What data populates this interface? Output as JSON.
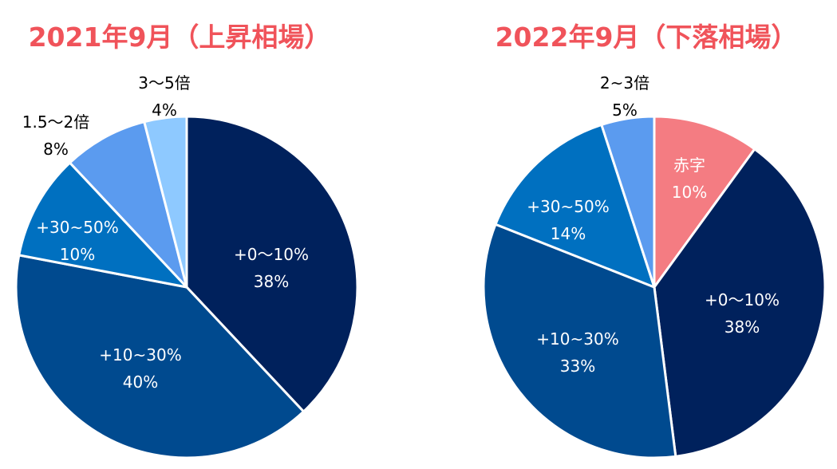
{
  "chart_data": [
    {
      "type": "pie",
      "title": "2021年9月（上昇相場）",
      "title_color": "#f0535a",
      "slices": [
        {
          "label": "+0〜10%",
          "value": 38,
          "value_text": "38%",
          "color": "#00215c",
          "label_placement": "inside"
        },
        {
          "label": "+10~30%",
          "value": 40,
          "value_text": "40%",
          "color": "#004a8f",
          "label_placement": "inside"
        },
        {
          "label": "+30~50%",
          "value": 10,
          "value_text": "10%",
          "color": "#0070c0",
          "label_placement": "inside"
        },
        {
          "label": "1.5〜2倍",
          "value": 8,
          "value_text": "8%",
          "color": "#5b9bef",
          "label_placement": "outside"
        },
        {
          "label": "3〜5倍",
          "value": 4,
          "value_text": "4%",
          "color": "#8ec9ff",
          "label_placement": "outside"
        }
      ]
    },
    {
      "type": "pie",
      "title": "2022年9月（下落相場）",
      "title_color": "#f0535a",
      "slices": [
        {
          "label": "赤字",
          "value": 10,
          "value_text": "10%",
          "color": "#f47c82",
          "label_placement": "inside"
        },
        {
          "label": "+0〜10%",
          "value": 38,
          "value_text": "38%",
          "color": "#00215c",
          "label_placement": "inside"
        },
        {
          "label": "+10~30%",
          "value": 33,
          "value_text": "33%",
          "color": "#004a8f",
          "label_placement": "inside"
        },
        {
          "label": "+30~50%",
          "value": 14,
          "value_text": "14%",
          "color": "#0070c0",
          "label_placement": "inside"
        },
        {
          "label": "2~3倍",
          "value": 5,
          "value_text": "5%",
          "color": "#5b9bef",
          "label_placement": "outside"
        }
      ]
    }
  ]
}
